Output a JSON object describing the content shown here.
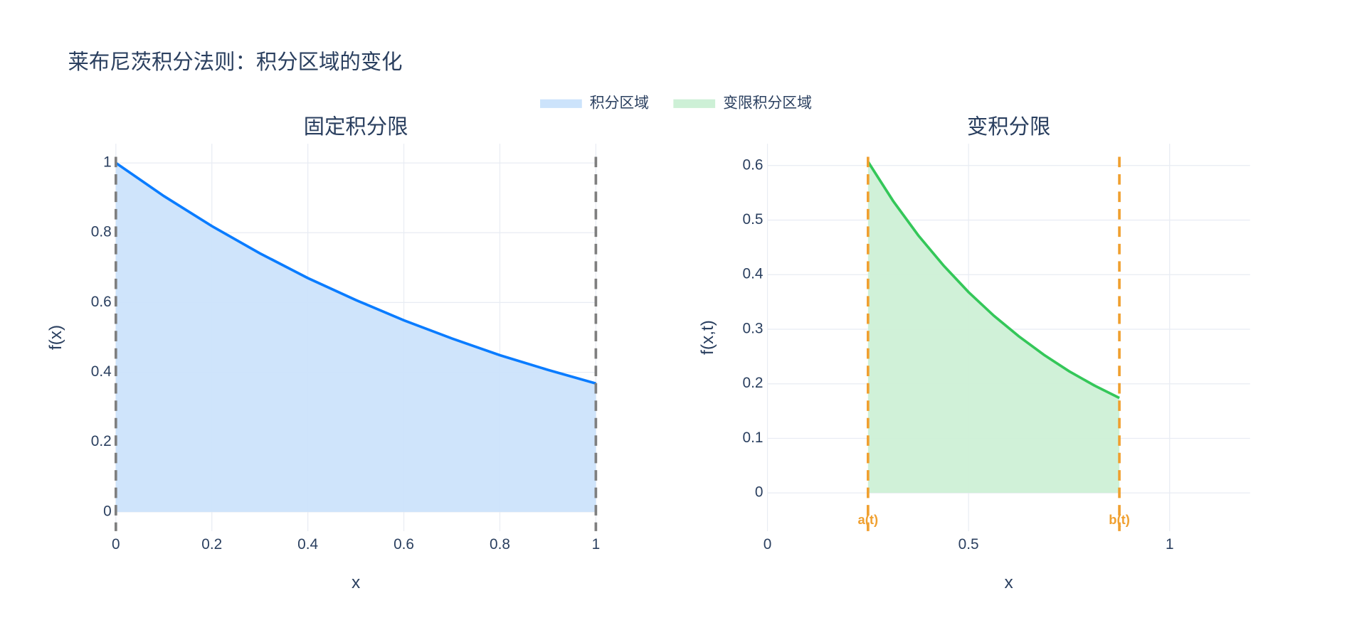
{
  "title": "莱布尼茨积分法则：积分区域的变化",
  "chart_data": [
    {
      "type": "area",
      "title": "固定积分限",
      "x_label": "x",
      "y_label": "f(x)",
      "x": [
        0,
        0.1,
        0.2,
        0.3,
        0.4,
        0.5,
        0.6,
        0.7,
        0.8,
        0.9,
        1
      ],
      "series": [
        {
          "name": "积分区域",
          "color": "#0a7cff",
          "fill": "#cce3fb",
          "values": [
            1,
            0.905,
            0.819,
            0.741,
            0.67,
            0.607,
            0.549,
            0.497,
            0.449,
            0.407,
            0.368
          ]
        }
      ],
      "xlim": [
        0,
        1
      ],
      "ylim": [
        -0.055,
        1.055
      ],
      "xticks": [
        0,
        0.2,
        0.4,
        0.6,
        0.8,
        1
      ],
      "yticks": [
        0,
        0.2,
        0.4,
        0.6,
        0.8,
        1
      ],
      "vlines": [
        0,
        1
      ],
      "vline_color": "#7f7f7f",
      "grid": true
    },
    {
      "type": "area",
      "title": "变积分限",
      "x_label": "x",
      "y_label": "f(x,t)",
      "x": [
        0.25,
        0.3125,
        0.375,
        0.4375,
        0.5,
        0.5625,
        0.625,
        0.6875,
        0.75,
        0.8125,
        0.875
      ],
      "series": [
        {
          "name": "变限积分区域",
          "color": "#34c759",
          "fill": "#cdf0d6",
          "values": [
            0.607,
            0.535,
            0.472,
            0.417,
            0.368,
            0.325,
            0.287,
            0.253,
            0.223,
            0.197,
            0.174
          ]
        }
      ],
      "xlim": [
        0,
        1.2
      ],
      "ylim": [
        -0.07,
        0.64
      ],
      "xticks": [
        0,
        0.5,
        1
      ],
      "yticks": [
        0,
        0.1,
        0.2,
        0.3,
        0.4,
        0.5,
        0.6
      ],
      "vlines": [
        {
          "value": 0.25,
          "label": "a(t)"
        },
        {
          "value": 0.875,
          "label": "b(t)"
        }
      ],
      "vline_color": "#f0a030",
      "grid": true
    }
  ]
}
